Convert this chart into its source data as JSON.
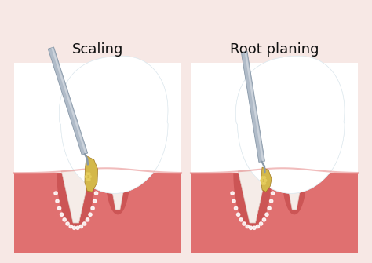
{
  "background_color": "#f7e8e5",
  "panel_bg": "#ffffff",
  "title_left": "Scaling",
  "title_right": "Root planing",
  "title_fontsize": 13,
  "title_color": "#111111",
  "gum_color": "#e07070",
  "gum_light": "#e89090",
  "gum_pocket": "#cc5555",
  "gum_inner": "#d86060",
  "root_fill": "#f5ece8",
  "root_edge": "#e0cfc8",
  "tartar_color": "#d4b84a",
  "tartar_light": "#e8d060",
  "tool_fill": "#b0bbc8",
  "tool_edge": "#8898a8",
  "tooth_white": "#ffffff",
  "tooth_shadow": "#c8dce8",
  "tooth_edge": "#dde8ee"
}
